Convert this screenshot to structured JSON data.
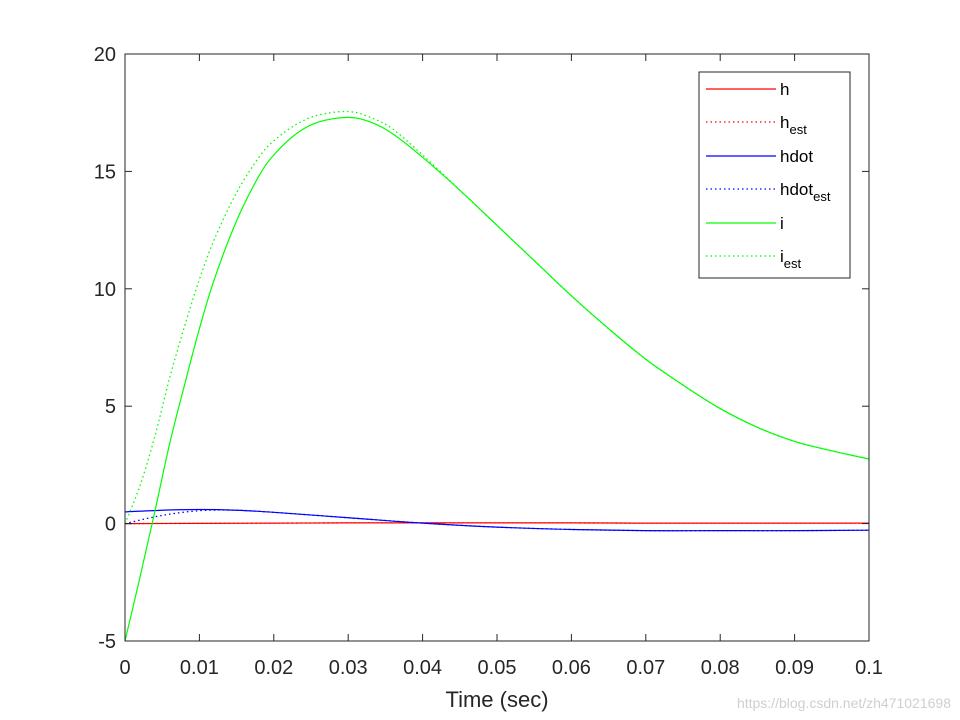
{
  "chart_data": {
    "type": "line",
    "title": "",
    "xlabel": "Time (sec)",
    "ylabel": "",
    "xlim": [
      0,
      0.1
    ],
    "ylim": [
      -5,
      20
    ],
    "grid": false,
    "x_ticks": [
      0,
      0.01,
      0.02,
      0.03,
      0.04,
      0.05,
      0.06,
      0.07,
      0.08,
      0.09,
      0.1
    ],
    "x_tick_labels": [
      "0",
      "0.01",
      "0.02",
      "0.03",
      "0.04",
      "0.05",
      "0.06",
      "0.07",
      "0.08",
      "0.09",
      "0.1"
    ],
    "y_ticks": [
      -5,
      0,
      5,
      10,
      15,
      20
    ],
    "y_tick_labels": [
      "-5",
      "0",
      "5",
      "10",
      "15",
      "20"
    ],
    "legend_position": "top-right",
    "series": [
      {
        "name": "h",
        "legend_main": "h",
        "legend_sub": "",
        "color": "#ff0000",
        "style": "solid",
        "x": [
          0,
          0.01,
          0.02,
          0.03,
          0.04,
          0.05,
          0.06,
          0.07,
          0.08,
          0.09,
          0.1
        ],
        "y": [
          0,
          0.01,
          0.02,
          0.03,
          0.03,
          0.03,
          0.03,
          0.02,
          0.02,
          0.02,
          0.02
        ]
      },
      {
        "name": "h_est",
        "legend_main": "h",
        "legend_sub": "est",
        "color": "#ff0000",
        "style": "dotted",
        "x": [
          0,
          0.01,
          0.02,
          0.03,
          0.04,
          0.05,
          0.06,
          0.07,
          0.08,
          0.09,
          0.1
        ],
        "y": [
          0,
          0.01,
          0.02,
          0.03,
          0.03,
          0.03,
          0.03,
          0.02,
          0.02,
          0.02,
          0.02
        ]
      },
      {
        "name": "hdot",
        "legend_main": "hdot",
        "legend_sub": "",
        "color": "#0000ff",
        "style": "solid",
        "x": [
          0,
          0.005,
          0.01,
          0.015,
          0.02,
          0.03,
          0.04,
          0.05,
          0.06,
          0.07,
          0.08,
          0.09,
          0.1
        ],
        "y": [
          0.5,
          0.57,
          0.6,
          0.57,
          0.48,
          0.25,
          0.02,
          -0.15,
          -0.25,
          -0.3,
          -0.3,
          -0.3,
          -0.28
        ]
      },
      {
        "name": "hdot_est",
        "legend_main": "hdot",
        "legend_sub": "est",
        "color": "#0000ff",
        "style": "dotted",
        "x": [
          0,
          0.005,
          0.01,
          0.015,
          0.02,
          0.03,
          0.04,
          0.05,
          0.06,
          0.07,
          0.08,
          0.09,
          0.1
        ],
        "y": [
          0,
          0.35,
          0.55,
          0.57,
          0.48,
          0.25,
          0.02,
          -0.15,
          -0.25,
          -0.3,
          -0.3,
          -0.3,
          -0.28
        ]
      },
      {
        "name": "i",
        "legend_main": "i",
        "legend_sub": "",
        "color": "#00ff00",
        "style": "solid",
        "x": [
          0,
          0.002,
          0.004,
          0.006,
          0.008,
          0.01,
          0.012,
          0.015,
          0.018,
          0.02,
          0.023,
          0.026,
          0.03,
          0.033,
          0.036,
          0.04,
          0.045,
          0.05,
          0.055,
          0.06,
          0.065,
          0.07,
          0.075,
          0.08,
          0.085,
          0.09,
          0.095,
          0.1
        ],
        "y": [
          -5,
          -2.3,
          0.5,
          3.4,
          5.9,
          8.3,
          10.4,
          12.9,
          14.8,
          15.7,
          16.6,
          17.1,
          17.3,
          17.1,
          16.6,
          15.6,
          14.2,
          12.7,
          11.2,
          9.7,
          8.3,
          7.0,
          5.9,
          4.9,
          4.1,
          3.5,
          3.1,
          2.75
        ]
      },
      {
        "name": "i_est",
        "legend_main": "i",
        "legend_sub": "est",
        "color": "#00ff00",
        "style": "dotted",
        "x": [
          0,
          0.002,
          0.004,
          0.006,
          0.008,
          0.01,
          0.012,
          0.015,
          0.018,
          0.02,
          0.023,
          0.026,
          0.03,
          0.033,
          0.036,
          0.04,
          0.045,
          0.05,
          0.055,
          0.06,
          0.065,
          0.07,
          0.075,
          0.08,
          0.085,
          0.09,
          0.095,
          0.1
        ],
        "y": [
          0,
          1.6,
          3.7,
          6.2,
          8.4,
          10.4,
          12.1,
          14.1,
          15.6,
          16.3,
          17.0,
          17.4,
          17.55,
          17.3,
          16.8,
          15.7,
          14.2,
          12.7,
          11.2,
          9.7,
          8.3,
          7.0,
          5.9,
          4.9,
          4.1,
          3.5,
          3.1,
          2.75
        ]
      }
    ]
  },
  "watermark": "https://blog.csdn.net/zh471021698"
}
